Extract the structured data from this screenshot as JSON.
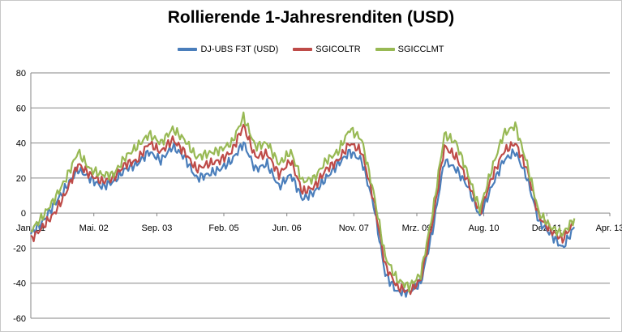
{
  "chart_data": {
    "type": "line",
    "title": "Rollierende 1-Jahresrenditen (USD)",
    "xlabel": "",
    "ylabel": "",
    "ylim": [
      -60,
      80
    ],
    "yticks": [
      -60,
      -40,
      -20,
      0,
      20,
      40,
      60,
      80
    ],
    "xlim": [
      "2001-01",
      "2013-04"
    ],
    "xtick_labels": [
      "Jan. 01",
      "Mai. 02",
      "Sep. 03",
      "Feb. 05",
      "Jun. 06",
      "Nov. 07",
      "Mrz. 09",
      "Aug. 10",
      "Dez. 11",
      "Apr. 13"
    ],
    "xtick_dates": [
      "2001-01",
      "2002-05",
      "2003-09",
      "2005-02",
      "2006-06",
      "2007-11",
      "2009-03",
      "2010-08",
      "2011-12",
      "2013-04"
    ],
    "grid": true,
    "legend_position": "top",
    "series": [
      {
        "name": "DJ-UBS F3T (USD)",
        "color": "#4a7ebb",
        "x": [
          "2001-01",
          "2001-04",
          "2001-07",
          "2001-10",
          "2002-01",
          "2002-04",
          "2002-07",
          "2002-10",
          "2003-01",
          "2003-04",
          "2003-07",
          "2003-10",
          "2004-01",
          "2004-04",
          "2004-07",
          "2004-10",
          "2005-01",
          "2005-04",
          "2005-07",
          "2005-10",
          "2006-01",
          "2006-04",
          "2006-07",
          "2006-10",
          "2007-01",
          "2007-04",
          "2007-07",
          "2007-10",
          "2008-01",
          "2008-04",
          "2008-07",
          "2008-10",
          "2009-01",
          "2009-04",
          "2009-07",
          "2009-10",
          "2010-01",
          "2010-04",
          "2010-07",
          "2010-10",
          "2011-01",
          "2011-04",
          "2011-07",
          "2011-10",
          "2012-01",
          "2012-04",
          "2012-07"
        ],
        "values": [
          -12,
          -5,
          5,
          15,
          25,
          20,
          15,
          18,
          25,
          28,
          35,
          30,
          38,
          32,
          20,
          22,
          25,
          30,
          40,
          25,
          28,
          15,
          22,
          8,
          12,
          20,
          28,
          35,
          30,
          5,
          -35,
          -45,
          -45,
          -40,
          -10,
          30,
          25,
          15,
          -2,
          15,
          30,
          35,
          20,
          -5,
          -12,
          -20,
          -8
        ]
      },
      {
        "name": "SGICOLTR",
        "color": "#be4b48",
        "x": [
          "2001-01",
          "2001-04",
          "2001-07",
          "2001-10",
          "2002-01",
          "2002-04",
          "2002-07",
          "2002-10",
          "2003-01",
          "2003-04",
          "2003-07",
          "2003-10",
          "2004-01",
          "2004-04",
          "2004-07",
          "2004-10",
          "2005-01",
          "2005-04",
          "2005-07",
          "2005-10",
          "2006-01",
          "2006-04",
          "2006-07",
          "2006-10",
          "2007-01",
          "2007-04",
          "2007-07",
          "2007-10",
          "2008-01",
          "2008-04",
          "2008-07",
          "2008-10",
          "2009-01",
          "2009-04",
          "2009-07",
          "2009-10",
          "2010-01",
          "2010-04",
          "2010-07",
          "2010-10",
          "2011-01",
          "2011-04",
          "2011-07",
          "2011-10",
          "2012-01",
          "2012-04",
          "2012-07"
        ],
        "values": [
          -15,
          -8,
          0,
          12,
          28,
          22,
          18,
          20,
          28,
          30,
          40,
          35,
          42,
          35,
          25,
          28,
          30,
          35,
          50,
          32,
          34,
          22,
          30,
          12,
          15,
          25,
          30,
          40,
          35,
          8,
          -30,
          -42,
          -45,
          -38,
          -5,
          38,
          32,
          18,
          0,
          20,
          35,
          40,
          25,
          -2,
          -10,
          -15,
          -5
        ]
      },
      {
        "name": "SGICCLMT",
        "color": "#98b954",
        "x": [
          "2001-01",
          "2001-04",
          "2001-07",
          "2001-10",
          "2002-01",
          "2002-04",
          "2002-07",
          "2002-10",
          "2003-01",
          "2003-04",
          "2003-07",
          "2003-10",
          "2004-01",
          "2004-04",
          "2004-07",
          "2004-10",
          "2005-01",
          "2005-04",
          "2005-07",
          "2005-10",
          "2006-01",
          "2006-04",
          "2006-07",
          "2006-10",
          "2007-01",
          "2007-04",
          "2007-07",
          "2007-10",
          "2008-01",
          "2008-04",
          "2008-07",
          "2008-10",
          "2009-01",
          "2009-04",
          "2009-07",
          "2009-10",
          "2010-01",
          "2010-04",
          "2010-07",
          "2010-10",
          "2011-01",
          "2011-04",
          "2011-07",
          "2011-10",
          "2012-01",
          "2012-04",
          "2012-07"
        ],
        "values": [
          -10,
          -2,
          8,
          20,
          35,
          25,
          22,
          22,
          32,
          38,
          45,
          40,
          48,
          42,
          32,
          34,
          36,
          40,
          55,
          38,
          40,
          28,
          35,
          18,
          20,
          30,
          35,
          48,
          42,
          12,
          -25,
          -38,
          -42,
          -35,
          0,
          45,
          40,
          22,
          2,
          25,
          45,
          50,
          28,
          0,
          -8,
          -12,
          -3
        ]
      }
    ]
  }
}
